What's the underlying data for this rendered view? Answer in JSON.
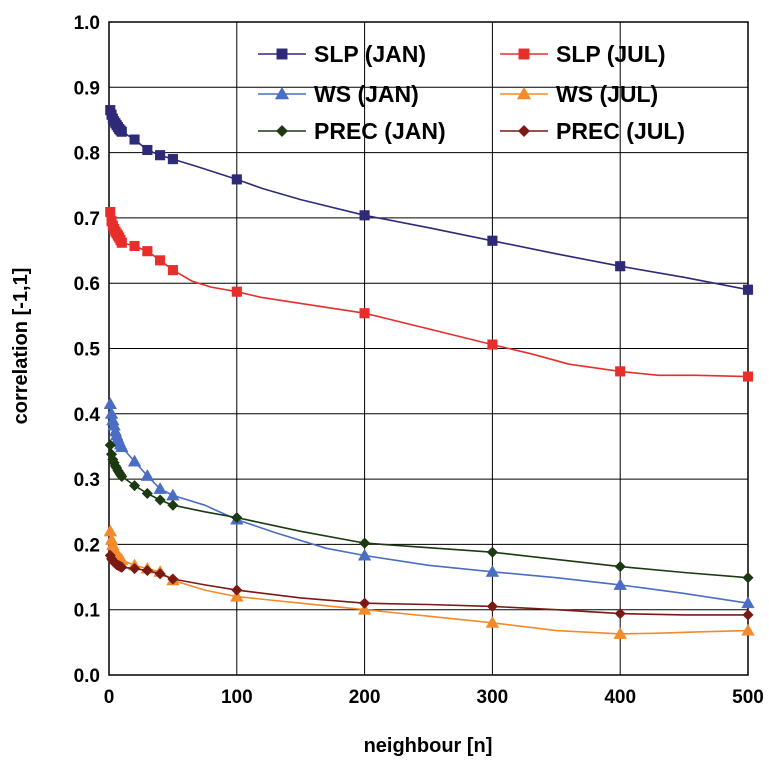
{
  "chart_data": {
    "type": "line",
    "xlabel": "neighbour [n]",
    "ylabel": "correlation [-1,1]",
    "xlim": [
      0,
      500
    ],
    "ylim": [
      0.0,
      1.0
    ],
    "xticks": [
      "0",
      "100",
      "200",
      "300",
      "400",
      "500"
    ],
    "yticks": [
      "0.0",
      "0.1",
      "0.2",
      "0.3",
      "0.4",
      "0.5",
      "0.6",
      "0.7",
      "0.8",
      "0.9",
      "1.0"
    ],
    "grid": true,
    "legend_position": "top-right",
    "series": [
      {
        "name": "SLP (JAN)",
        "color": "#2E2A78",
        "marker": "square",
        "x": [
          1,
          2,
          3,
          4,
          5,
          6,
          7,
          8,
          9,
          10,
          20,
          30,
          40,
          50,
          100,
          200,
          300,
          400,
          500
        ],
        "y": [
          0.865,
          0.858,
          0.852,
          0.848,
          0.845,
          0.842,
          0.839,
          0.836,
          0.834,
          0.832,
          0.82,
          0.804,
          0.796,
          0.79,
          0.759,
          0.704,
          0.665,
          0.626,
          0.59
        ],
        "curve_x": [
          50,
          70,
          100,
          120,
          150,
          200,
          250,
          300,
          350,
          400,
          450,
          500
        ],
        "curve_y": [
          0.79,
          0.778,
          0.759,
          0.745,
          0.728,
          0.704,
          0.685,
          0.665,
          0.645,
          0.626,
          0.609,
          0.59
        ]
      },
      {
        "name": "SLP (JUL)",
        "color": "#E82E2A",
        "marker": "square",
        "x": [
          1,
          2,
          3,
          4,
          5,
          6,
          7,
          8,
          9,
          10,
          20,
          30,
          40,
          50,
          100,
          200,
          300,
          400,
          500
        ],
        "y": [
          0.709,
          0.695,
          0.688,
          0.683,
          0.679,
          0.676,
          0.673,
          0.67,
          0.666,
          0.662,
          0.657,
          0.649,
          0.635,
          0.62,
          0.587,
          0.554,
          0.506,
          0.465,
          0.457
        ],
        "curve_x": [
          50,
          65,
          80,
          100,
          120,
          150,
          200,
          250,
          300,
          330,
          360,
          400,
          430,
          460,
          500
        ],
        "curve_y": [
          0.62,
          0.603,
          0.594,
          0.587,
          0.578,
          0.569,
          0.554,
          0.53,
          0.506,
          0.492,
          0.476,
          0.465,
          0.459,
          0.459,
          0.457
        ]
      },
      {
        "name": "WS (JAN)",
        "color": "#4A6EC4",
        "marker": "triangle",
        "x": [
          1,
          2,
          3,
          4,
          5,
          6,
          7,
          8,
          9,
          10,
          20,
          30,
          40,
          50,
          100,
          200,
          300,
          400,
          500
        ],
        "y": [
          0.415,
          0.4,
          0.39,
          0.382,
          0.373,
          0.367,
          0.362,
          0.357,
          0.353,
          0.349,
          0.327,
          0.305,
          0.285,
          0.275,
          0.238,
          0.183,
          0.158,
          0.138,
          0.11
        ],
        "curve_x": [
          50,
          75,
          100,
          130,
          170,
          200,
          250,
          300,
          350,
          400,
          450,
          500
        ],
        "curve_y": [
          0.275,
          0.26,
          0.238,
          0.218,
          0.194,
          0.183,
          0.168,
          0.158,
          0.149,
          0.138,
          0.125,
          0.11
        ]
      },
      {
        "name": "WS (JUL)",
        "color": "#F58A2A",
        "marker": "triangle",
        "x": [
          1,
          2,
          3,
          4,
          5,
          6,
          7,
          8,
          9,
          10,
          20,
          30,
          40,
          50,
          100,
          200,
          300,
          400,
          500
        ],
        "y": [
          0.22,
          0.207,
          0.199,
          0.193,
          0.188,
          0.185,
          0.182,
          0.18,
          0.178,
          0.176,
          0.168,
          0.163,
          0.158,
          0.145,
          0.12,
          0.1,
          0.08,
          0.063,
          0.068
        ],
        "curve_x": [
          50,
          75,
          100,
          150,
          200,
          250,
          300,
          350,
          400,
          430,
          460,
          500
        ],
        "curve_y": [
          0.145,
          0.13,
          0.12,
          0.11,
          0.1,
          0.09,
          0.08,
          0.068,
          0.063,
          0.064,
          0.066,
          0.068
        ]
      },
      {
        "name": "PREC (JAN)",
        "color": "#1B3A12",
        "marker": "diamond",
        "x": [
          1,
          2,
          3,
          4,
          5,
          6,
          7,
          8,
          9,
          10,
          20,
          30,
          40,
          50,
          100,
          200,
          300,
          400,
          500
        ],
        "y": [
          0.352,
          0.338,
          0.33,
          0.325,
          0.32,
          0.317,
          0.313,
          0.31,
          0.307,
          0.304,
          0.29,
          0.278,
          0.268,
          0.26,
          0.241,
          0.202,
          0.188,
          0.166,
          0.149
        ],
        "curve_x": [
          50,
          75,
          100,
          150,
          200,
          250,
          300,
          350,
          400,
          450,
          500
        ],
        "curve_y": [
          0.26,
          0.25,
          0.241,
          0.22,
          0.202,
          0.195,
          0.188,
          0.177,
          0.166,
          0.157,
          0.149
        ]
      },
      {
        "name": "PREC (JUL)",
        "color": "#7A1A14",
        "marker": "diamond",
        "x": [
          1,
          2,
          3,
          4,
          5,
          6,
          7,
          8,
          9,
          10,
          20,
          30,
          40,
          50,
          100,
          200,
          300,
          400,
          500
        ],
        "y": [
          0.183,
          0.178,
          0.175,
          0.173,
          0.171,
          0.169,
          0.168,
          0.167,
          0.166,
          0.165,
          0.163,
          0.16,
          0.155,
          0.147,
          0.13,
          0.11,
          0.105,
          0.094,
          0.092
        ],
        "curve_x": [
          50,
          75,
          100,
          150,
          200,
          250,
          300,
          350,
          400,
          450,
          500
        ],
        "curve_y": [
          0.147,
          0.138,
          0.13,
          0.118,
          0.11,
          0.108,
          0.105,
          0.1,
          0.094,
          0.092,
          0.092
        ]
      }
    ]
  }
}
